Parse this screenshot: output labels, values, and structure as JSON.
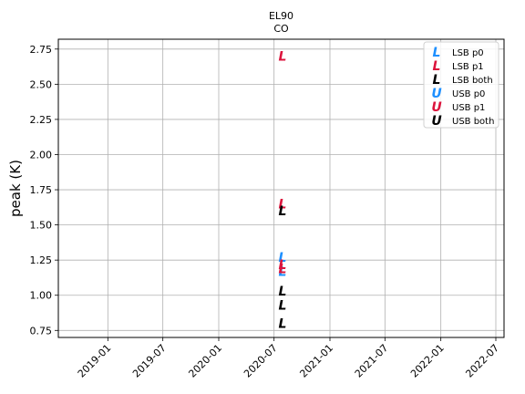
{
  "chart_data": {
    "type": "scatter",
    "title": "EL90",
    "subtitle": "CO",
    "xlabel": "",
    "ylabel": "peak (K)",
    "x_ticks": [
      "2019-01",
      "2019-07",
      "2020-01",
      "2020-07",
      "2021-01",
      "2021-07",
      "2022-01",
      "2022-07"
    ],
    "xlim": [
      "2018-07-22",
      "2022-07-28"
    ],
    "ylim": [
      0.7,
      2.82
    ],
    "y_ticks": [
      0.75,
      1.0,
      1.25,
      1.5,
      1.75,
      2.0,
      2.25,
      2.5,
      2.75
    ],
    "y_tick_labels": [
      "0.75",
      "1.00",
      "1.25",
      "1.50",
      "1.75",
      "2.00",
      "2.25",
      "2.50",
      "2.75"
    ],
    "grid": true,
    "legend_position": "top-right",
    "series": [
      {
        "name": "LSB p0",
        "marker": "L",
        "color": "#1e90ff",
        "points": [
          {
            "x": "2020-07-29",
            "y": 1.27
          },
          {
            "x": "2020-07-29",
            "y": 1.17
          }
        ]
      },
      {
        "name": "LSB p1",
        "marker": "L",
        "color": "#dc143c",
        "points": [
          {
            "x": "2020-07-29",
            "y": 2.7
          },
          {
            "x": "2020-07-29",
            "y": 1.65
          },
          {
            "x": "2020-07-29",
            "y": 1.22
          },
          {
            "x": "2020-07-29",
            "y": 1.19
          }
        ]
      },
      {
        "name": "LSB both",
        "marker": "L",
        "color": "#000000",
        "points": [
          {
            "x": "2020-07-29",
            "y": 1.6
          },
          {
            "x": "2020-07-29",
            "y": 1.03
          },
          {
            "x": "2020-07-29",
            "y": 0.93
          },
          {
            "x": "2020-07-29",
            "y": 0.8
          }
        ]
      },
      {
        "name": "USB p0",
        "marker": "U",
        "color": "#1e90ff",
        "points": []
      },
      {
        "name": "USB p1",
        "marker": "U",
        "color": "#dc143c",
        "points": []
      },
      {
        "name": "USB both",
        "marker": "U",
        "color": "#000000",
        "points": []
      }
    ]
  }
}
